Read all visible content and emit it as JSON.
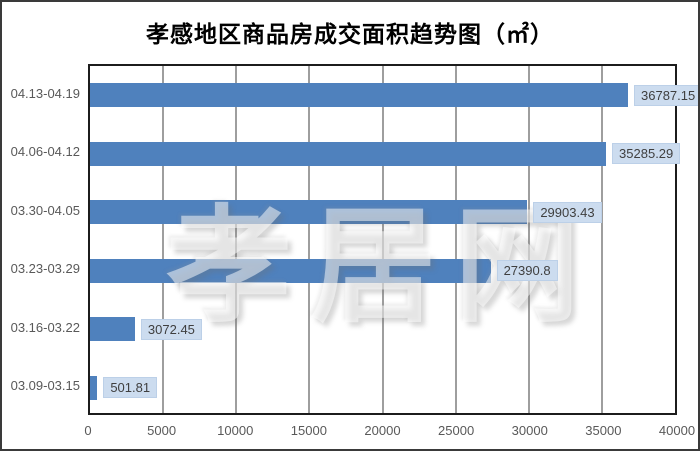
{
  "page": {
    "background": "#ffffff",
    "outer_border_color": "#3a3a3a",
    "plot_border_color": "#1c1c1c",
    "gridline_color": "#3d3d3d"
  },
  "chart_data": {
    "type": "bar",
    "orientation": "horizontal",
    "title": "孝感地区商品房成交面积趋势图（㎡）",
    "categories": [
      "04.13-04.19",
      "04.06-04.12",
      "03.30-04.05",
      "03.23-03.29",
      "03.16-03.22",
      "03.09-03.15"
    ],
    "values": [
      36787.15,
      35285.29,
      29903.43,
      27390.8,
      3072.45,
      501.81
    ],
    "value_labels": [
      "36787.15",
      "35285.29",
      "29903.43",
      "27390.8",
      "3072.45",
      "501.81"
    ],
    "x_ticks": [
      "0",
      "5000",
      "10000",
      "15000",
      "20000",
      "25000",
      "30000",
      "35000",
      "40000"
    ],
    "xlim": [
      0,
      40000
    ],
    "grid": true,
    "legend": false,
    "bar_color": "#4f81bd",
    "value_label_bg": "#ccdcef",
    "value_label_text_color": "#3f3f3f",
    "axis_text_color": "#595959",
    "watermark": "孝居网"
  }
}
